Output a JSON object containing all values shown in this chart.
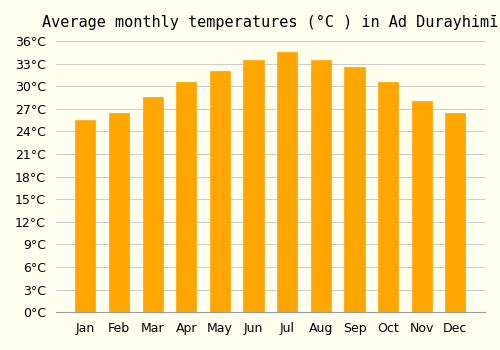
{
  "title": "Average monthly temperatures (°C ) in Ad Durayhimī",
  "months": [
    "Jan",
    "Feb",
    "Mar",
    "Apr",
    "May",
    "Jun",
    "Jul",
    "Aug",
    "Sep",
    "Oct",
    "Nov",
    "Dec"
  ],
  "values": [
    25.5,
    26.5,
    28.5,
    30.5,
    32.0,
    33.5,
    34.5,
    33.5,
    32.5,
    30.5,
    28.0,
    26.5
  ],
  "bar_color": "#FFA500",
  "bar_edge_color": "#E08000",
  "background_color": "#FFFFF0",
  "grid_color": "#cccccc",
  "ylim": [
    0,
    36
  ],
  "yticks": [
    0,
    3,
    6,
    9,
    12,
    15,
    18,
    21,
    24,
    27,
    30,
    33,
    36
  ],
  "title_fontsize": 11,
  "tick_fontsize": 9
}
